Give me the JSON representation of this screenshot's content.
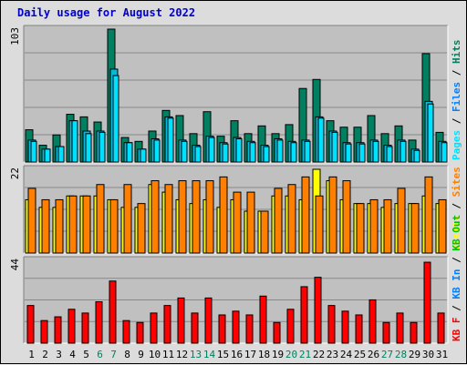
{
  "title": "Daily usage for August 2022",
  "colors": {
    "title": "#0000cc",
    "panel_bg": "#c0c0c0",
    "grid": "#888888",
    "hits": "#008060",
    "files": "#00bbdd",
    "pages": "#00e0ff",
    "visits": "#ffff00",
    "sites": "#ff8000",
    "kb_f": "#ff0000",
    "kb_in": "#0080ff",
    "kb_out": "#00c000",
    "weekend": "#008060",
    "weekday": "#000000"
  },
  "chart_data": [
    {
      "type": "bar",
      "name": "hits-files-pages",
      "ymax_label": "103",
      "ylim": [
        0,
        103
      ],
      "legend": [
        {
          "text": "Pages",
          "color": "#00e0ff"
        },
        {
          "text": "Files",
          "color": "#0080ff"
        },
        {
          "text": "Hits",
          "color": "#008060"
        }
      ],
      "series": [
        {
          "name": "Hits",
          "color": "#008060",
          "values": [
            25,
            13,
            21,
            37,
            35,
            31,
            103,
            19,
            16,
            24,
            40,
            36,
            22,
            39,
            20,
            32,
            22,
            28,
            22,
            29,
            57,
            64,
            32,
            27,
            27,
            36,
            22,
            28,
            17,
            84,
            23
          ]
        },
        {
          "name": "Files",
          "color": "#00bbdd",
          "values": [
            17,
            10,
            12,
            32,
            24,
            24,
            72,
            15,
            10,
            18,
            35,
            17,
            13,
            20,
            15,
            19,
            16,
            13,
            18,
            16,
            17,
            35,
            24,
            15,
            15,
            17,
            13,
            17,
            10,
            47,
            16
          ]
        },
        {
          "name": "Pages",
          "color": "#00e0ff",
          "values": [
            16,
            10,
            12,
            32,
            22,
            23,
            67,
            15,
            10,
            17,
            34,
            16,
            12,
            19,
            14,
            18,
            15,
            12,
            17,
            15,
            16,
            34,
            23,
            14,
            14,
            16,
            12,
            16,
            9,
            45,
            15
          ]
        }
      ]
    },
    {
      "type": "bar",
      "name": "visits-sites",
      "ymax_label": "22",
      "ylim": [
        0,
        22
      ],
      "legend": [
        {
          "text": "Visits",
          "color": "#ffff00"
        },
        {
          "text": "Sites",
          "color": "#ff8000"
        }
      ],
      "series": [
        {
          "name": "Visits",
          "color": "#ffff00",
          "values": [
            14,
            12,
            12,
            15,
            15,
            15,
            14,
            12,
            12,
            18,
            16,
            14,
            13,
            14,
            12,
            14,
            11,
            11,
            15,
            15,
            14,
            22,
            19,
            14,
            13,
            13,
            12,
            13,
            13,
            15,
            13
          ]
        },
        {
          "name": "Sites",
          "color": "#ff8000",
          "values": [
            17,
            14,
            14,
            15,
            15,
            18,
            14,
            18,
            13,
            19,
            18,
            19,
            19,
            19,
            20,
            16,
            16,
            11,
            17,
            18,
            20,
            15,
            20,
            19,
            13,
            14,
            14,
            17,
            13,
            20,
            14
          ]
        }
      ]
    },
    {
      "type": "bar",
      "name": "kbytes",
      "ymax_label": "44",
      "ylim": [
        0,
        44
      ],
      "legend": [
        {
          "text": "KB F",
          "color": "#ff0000"
        },
        {
          "text": "KB In",
          "color": "#0080ff"
        },
        {
          "text": "KB Out",
          "color": "#00c000"
        }
      ],
      "series": [
        {
          "name": "KB F",
          "color": "#ff0000",
          "values": [
            20,
            12,
            14,
            18,
            16,
            22,
            33,
            12,
            11,
            16,
            20,
            24,
            16,
            24,
            15,
            17,
            15,
            25,
            11,
            18,
            30,
            35,
            20,
            17,
            15,
            23,
            11,
            16,
            11,
            43,
            16
          ]
        }
      ]
    }
  ],
  "x_axis": {
    "days": [
      "1",
      "2",
      "3",
      "4",
      "5",
      "6",
      "7",
      "8",
      "9",
      "10",
      "11",
      "12",
      "13",
      "14",
      "15",
      "16",
      "17",
      "18",
      "19",
      "20",
      "21",
      "22",
      "23",
      "24",
      "25",
      "26",
      "27",
      "28",
      "29",
      "30",
      "31"
    ],
    "weekend_days": [
      "6",
      "7",
      "13",
      "14",
      "20",
      "21",
      "27",
      "28"
    ]
  }
}
